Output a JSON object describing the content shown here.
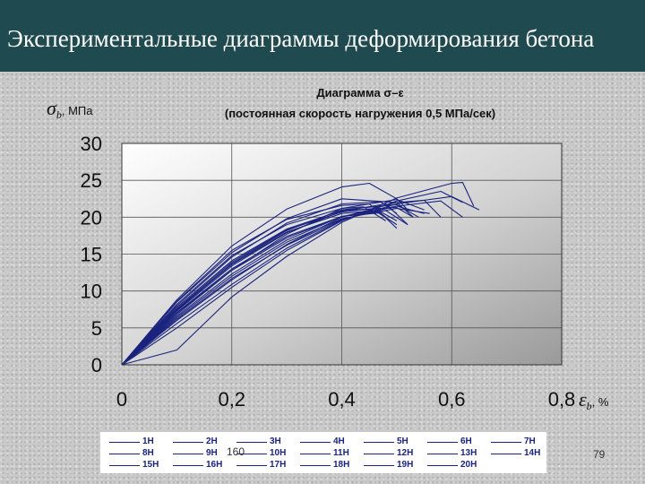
{
  "slide": {
    "title": "Экспериментальные диаграммы деформирования бетона",
    "page_numbers": [
      "160",
      "79"
    ]
  },
  "chart_data": {
    "type": "line",
    "title_line1": "Диаграмма σ–ε",
    "title_line2": "(постоянная скорость нагружения 0,5 МПа/сек)",
    "ylabel_symbol": "σ",
    "ylabel_sub": "b",
    "ylabel_unit": ", МПа",
    "xlabel_symbol": "ε",
    "xlabel_sub": "b",
    "xlabel_unit": ", %",
    "xlim": [
      0,
      0.8
    ],
    "ylim": [
      0,
      30
    ],
    "x_ticks": [
      0,
      0.2,
      0.4,
      0.6,
      0.8
    ],
    "x_tick_labels": [
      "0",
      "0,2",
      "0,4",
      "0,6",
      "0,8"
    ],
    "y_ticks": [
      0,
      5,
      10,
      15,
      20,
      25,
      30
    ],
    "y_tick_labels": [
      "0",
      "5",
      "10",
      "15",
      "20",
      "25",
      "30"
    ],
    "grid": true,
    "legend_position": "bottom",
    "line_color": "#1a237e",
    "series": [
      {
        "name": "1Н",
        "values": [
          [
            0,
            0
          ],
          [
            0.1,
            7.3
          ],
          [
            0.2,
            13.4
          ],
          [
            0.3,
            17.9
          ],
          [
            0.4,
            20.8
          ],
          [
            0.48,
            21.8
          ],
          [
            0.52,
            19
          ]
        ]
      },
      {
        "name": "2Н",
        "values": [
          [
            0,
            0
          ],
          [
            0.1,
            8.5
          ],
          [
            0.2,
            15.2
          ],
          [
            0.3,
            19.8
          ],
          [
            0.4,
            22.5
          ],
          [
            0.5,
            22
          ],
          [
            0.53,
            20
          ]
        ]
      },
      {
        "name": "3Н",
        "values": [
          [
            0,
            0
          ],
          [
            0.1,
            5.6
          ],
          [
            0.2,
            10.9
          ],
          [
            0.3,
            15.8
          ],
          [
            0.4,
            19.6
          ],
          [
            0.5,
            21.8
          ],
          [
            0.6,
            22.8
          ],
          [
            0.65,
            21
          ]
        ]
      },
      {
        "name": "4Н",
        "values": [
          [
            0,
            0
          ],
          [
            0.1,
            8.8
          ],
          [
            0.2,
            16.1
          ],
          [
            0.3,
            21.1
          ],
          [
            0.4,
            24.1
          ],
          [
            0.45,
            24.6
          ],
          [
            0.5,
            22.5
          ],
          [
            0.52,
            21
          ]
        ]
      },
      {
        "name": "5Н",
        "values": [
          [
            0,
            0
          ],
          [
            0.1,
            6.8
          ],
          [
            0.2,
            12.8
          ],
          [
            0.3,
            17.7
          ],
          [
            0.4,
            21.2
          ],
          [
            0.5,
            22.4
          ],
          [
            0.55,
            21
          ]
        ]
      },
      {
        "name": "6Н",
        "values": [
          [
            0,
            0
          ],
          [
            0.1,
            7.6
          ],
          [
            0.2,
            13.9
          ],
          [
            0.3,
            18.3
          ],
          [
            0.4,
            20.7
          ],
          [
            0.46,
            21.2
          ],
          [
            0.5,
            19.5
          ]
        ]
      },
      {
        "name": "7Н",
        "values": [
          [
            0,
            0
          ],
          [
            0.1,
            6.2
          ],
          [
            0.2,
            11.7
          ],
          [
            0.3,
            16.2
          ],
          [
            0.4,
            19.7
          ],
          [
            0.5,
            21.5
          ],
          [
            0.58,
            22.2
          ],
          [
            0.62,
            20
          ]
        ]
      },
      {
        "name": "8Н",
        "values": [
          [
            0,
            0
          ],
          [
            0.1,
            8
          ],
          [
            0.2,
            14.6
          ],
          [
            0.3,
            19.2
          ],
          [
            0.4,
            21.8
          ],
          [
            0.47,
            22.1
          ],
          [
            0.5,
            20.5
          ]
        ]
      },
      {
        "name": "9Н",
        "values": [
          [
            0,
            0
          ],
          [
            0.1,
            7
          ],
          [
            0.2,
            12.8
          ],
          [
            0.3,
            17.2
          ],
          [
            0.4,
            20.1
          ],
          [
            0.48,
            20.9
          ],
          [
            0.52,
            19
          ]
        ]
      },
      {
        "name": "10Н",
        "values": [
          [
            0,
            0
          ],
          [
            0.1,
            2
          ],
          [
            0.2,
            9.2
          ],
          [
            0.3,
            14.7
          ],
          [
            0.4,
            19.3
          ],
          [
            0.5,
            22.6
          ],
          [
            0.6,
            24.6
          ],
          [
            0.62,
            24.7
          ],
          [
            0.64,
            21.5
          ]
        ]
      },
      {
        "name": "11Н",
        "values": [
          [
            0,
            0
          ],
          [
            0.1,
            7.4
          ],
          [
            0.2,
            13.7
          ],
          [
            0.3,
            18.2
          ],
          [
            0.4,
            21
          ],
          [
            0.5,
            21.7
          ],
          [
            0.54,
            20
          ]
        ]
      },
      {
        "name": "12Н",
        "values": [
          [
            0,
            0
          ],
          [
            0.1,
            6.4
          ],
          [
            0.2,
            12
          ],
          [
            0.3,
            16.6
          ],
          [
            0.4,
            19.8
          ],
          [
            0.5,
            21.2
          ],
          [
            0.56,
            20.5
          ]
        ]
      },
      {
        "name": "13Н",
        "values": [
          [
            0,
            0
          ],
          [
            0.1,
            8.2
          ],
          [
            0.2,
            14.8
          ],
          [
            0.3,
            19
          ],
          [
            0.4,
            21.2
          ],
          [
            0.44,
            21.4
          ],
          [
            0.48,
            19.5
          ]
        ]
      },
      {
        "name": "14Н",
        "values": [
          [
            0,
            0
          ],
          [
            0.1,
            5
          ],
          [
            0.2,
            10.5
          ],
          [
            0.3,
            15.5
          ],
          [
            0.4,
            19.5
          ],
          [
            0.5,
            22.2
          ],
          [
            0.58,
            23.5
          ],
          [
            0.62,
            22
          ]
        ]
      },
      {
        "name": "15Н",
        "values": [
          [
            0,
            0
          ],
          [
            0.1,
            7.8
          ],
          [
            0.2,
            14.1
          ],
          [
            0.3,
            18.4
          ],
          [
            0.4,
            20.9
          ],
          [
            0.5,
            21.3
          ],
          [
            0.53,
            20
          ]
        ]
      },
      {
        "name": "16Н",
        "values": [
          [
            0,
            0
          ],
          [
            0.1,
            7.1
          ],
          [
            0.2,
            13
          ],
          [
            0.3,
            17.4
          ],
          [
            0.4,
            20.1
          ],
          [
            0.47,
            20.6
          ],
          [
            0.5,
            18.5
          ]
        ]
      },
      {
        "name": "17Н",
        "values": [
          [
            0,
            0
          ],
          [
            0.1,
            6
          ],
          [
            0.2,
            11.5
          ],
          [
            0.3,
            16.3
          ],
          [
            0.4,
            20
          ],
          [
            0.5,
            22
          ],
          [
            0.55,
            22.3
          ],
          [
            0.58,
            20
          ]
        ]
      },
      {
        "name": "18Н",
        "values": [
          [
            0,
            0
          ],
          [
            0.1,
            8.6
          ],
          [
            0.2,
            15.5
          ],
          [
            0.3,
            19.7
          ],
          [
            0.4,
            21.6
          ],
          [
            0.45,
            21.8
          ],
          [
            0.48,
            20
          ]
        ]
      },
      {
        "name": "19Н",
        "values": [
          [
            0,
            0
          ],
          [
            0.1,
            6.6
          ],
          [
            0.2,
            12.3
          ],
          [
            0.3,
            16.9
          ],
          [
            0.4,
            20.1
          ],
          [
            0.5,
            21.5
          ],
          [
            0.55,
            20.5
          ]
        ]
      },
      {
        "name": "20Н",
        "values": [
          [
            0,
            0
          ],
          [
            0.1,
            7.5
          ],
          [
            0.2,
            13.6
          ],
          [
            0.3,
            18
          ],
          [
            0.4,
            20.5
          ],
          [
            0.46,
            20.9
          ],
          [
            0.5,
            19
          ]
        ]
      }
    ]
  }
}
